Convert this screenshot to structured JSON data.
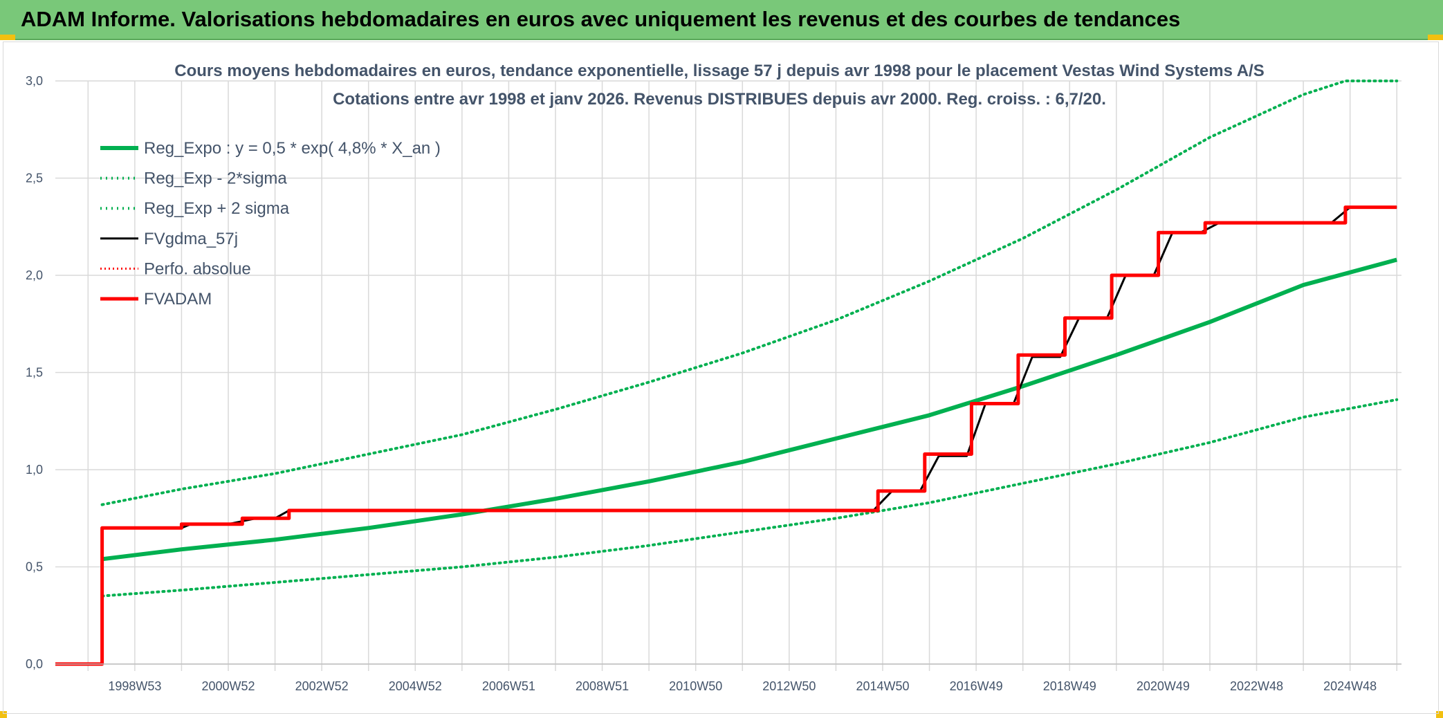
{
  "header": {
    "title": "ADAM Informe. Valorisations hebdomadaires en euros avec uniquement les revenus et des courbes de tendances"
  },
  "colors": {
    "banner": "#79c879",
    "trend": "#00b050",
    "price": "#ff0000",
    "smooth": "#000000",
    "grid": "#d9d9d9",
    "text": "#44546a"
  },
  "chart_data": {
    "type": "line",
    "title_line1": "Cours moyens hebdomadaires en euros, tendance exponentielle, lissage 57 j depuis avr 1998 pour le placement Vestas Wind Systems A/S",
    "title_line2": "Cotations entre avr 1998 et janv 2026. Revenus DISTRIBUES depuis avr 2000. Reg. croiss. : 6,7/20.",
    "xlabel": "",
    "ylabel": "",
    "ylim": [
      0,
      3
    ],
    "xlim": [
      1997.3,
      2026.1
    ],
    "y_ticks": [
      "0,0",
      "0,5",
      "1,0",
      "1,5",
      "2,0",
      "2,5",
      "3,0"
    ],
    "x_ticks": [
      "1998W53",
      "2000W52",
      "2002W52",
      "2004W52",
      "2006W51",
      "2008W51",
      "2010W50",
      "2012W50",
      "2014W50",
      "2016W49",
      "2018W49",
      "2020W49",
      "2022W48",
      "2024W48"
    ],
    "x_tick_years": [
      1999.0,
      2001.0,
      2003.0,
      2005.0,
      2007.0,
      2009.0,
      2011.0,
      2013.0,
      2015.0,
      2017.0,
      2019.0,
      2021.0,
      2023.0,
      2025.0
    ],
    "grid": true,
    "legend_position": "top-left",
    "legend": [
      {
        "label": "Reg_Expo : y = 0,5 * exp( 4,8% *  X_an )",
        "style": "solid-thick",
        "color": "#00b050"
      },
      {
        "label": "Reg_Exp - 2*sigma",
        "style": "dotted",
        "color": "#00b050"
      },
      {
        "label": "Reg_Exp + 2 sigma",
        "style": "dotted",
        "color": "#00b050"
      },
      {
        "label": "FVgdma_57j",
        "style": "solid",
        "color": "#000000"
      },
      {
        "label": "Perfo. absolue",
        "style": "dotted",
        "color": "#ff0000"
      },
      {
        "label": "FVADAM",
        "style": "solid-thick",
        "color": "#ff0000"
      }
    ],
    "series": [
      {
        "name": "Reg_Expo : y = 0,5 * exp( 4,8% *  X_an )",
        "x": [
          1998.3,
          2000.0,
          2002.0,
          2004.0,
          2006.0,
          2008.0,
          2010.0,
          2012.0,
          2014.0,
          2016.0,
          2018.0,
          2020.0,
          2022.0,
          2024.0,
          2026.0
        ],
        "values": [
          0.54,
          0.59,
          0.64,
          0.7,
          0.77,
          0.85,
          0.94,
          1.04,
          1.16,
          1.28,
          1.43,
          1.59,
          1.76,
          1.95,
          2.08
        ]
      },
      {
        "name": "Reg_Exp - 2*sigma",
        "x": [
          1998.3,
          2000.0,
          2002.0,
          2004.0,
          2006.0,
          2008.0,
          2010.0,
          2012.0,
          2014.0,
          2016.0,
          2018.0,
          2020.0,
          2022.0,
          2024.0,
          2026.0
        ],
        "values": [
          0.35,
          0.38,
          0.42,
          0.46,
          0.5,
          0.55,
          0.61,
          0.68,
          0.75,
          0.83,
          0.93,
          1.03,
          1.14,
          1.27,
          1.36
        ]
      },
      {
        "name": "Reg_Exp + 2 sigma",
        "x": [
          1998.3,
          2000.0,
          2002.0,
          2004.0,
          2006.0,
          2008.0,
          2010.0,
          2012.0,
          2014.0,
          2016.0,
          2018.0,
          2020.0,
          2022.0,
          2024.0,
          2024.9,
          2026.0
        ],
        "values": [
          0.82,
          0.9,
          0.98,
          1.08,
          1.18,
          1.31,
          1.45,
          1.6,
          1.77,
          1.97,
          2.19,
          2.44,
          2.71,
          2.93,
          3.0,
          3.0
        ]
      },
      {
        "name": "FVgdma_57j",
        "x": [
          1997.3,
          1998.3,
          1998.31,
          2000.0,
          2000.2,
          2001.0,
          2001.6,
          2002.0,
          2002.3,
          2014.8,
          2015.2,
          2015.8,
          2016.2,
          2016.8,
          2017.2,
          2017.8,
          2018.2,
          2018.8,
          2019.2,
          2019.8,
          2020.2,
          2020.8,
          2021.2,
          2021.8,
          2022.2,
          2024.6,
          2025.0,
          2026.0
        ],
        "values": [
          0.0,
          0.0,
          0.7,
          0.7,
          0.72,
          0.72,
          0.75,
          0.75,
          0.79,
          0.79,
          0.89,
          0.89,
          1.07,
          1.07,
          1.34,
          1.34,
          1.58,
          1.58,
          1.78,
          1.78,
          2.0,
          2.0,
          2.22,
          2.22,
          2.27,
          2.27,
          2.35,
          2.35
        ]
      },
      {
        "name": "FVADAM",
        "x": [
          1997.3,
          1998.3,
          1998.3,
          2000.0,
          2000.0,
          2001.3,
          2001.3,
          2002.3,
          2002.3,
          2014.9,
          2014.9,
          2015.9,
          2015.9,
          2016.9,
          2016.9,
          2017.9,
          2017.9,
          2018.9,
          2018.9,
          2019.9,
          2019.9,
          2020.9,
          2020.9,
          2021.9,
          2021.9,
          2024.9,
          2024.9,
          2026.0
        ],
        "values": [
          0.0,
          0.0,
          0.7,
          0.7,
          0.72,
          0.72,
          0.75,
          0.75,
          0.79,
          0.79,
          0.89,
          0.89,
          1.08,
          1.08,
          1.34,
          1.34,
          1.59,
          1.59,
          1.78,
          1.78,
          2.0,
          2.0,
          2.22,
          2.22,
          2.27,
          2.27,
          2.35,
          2.35
        ]
      }
    ]
  }
}
